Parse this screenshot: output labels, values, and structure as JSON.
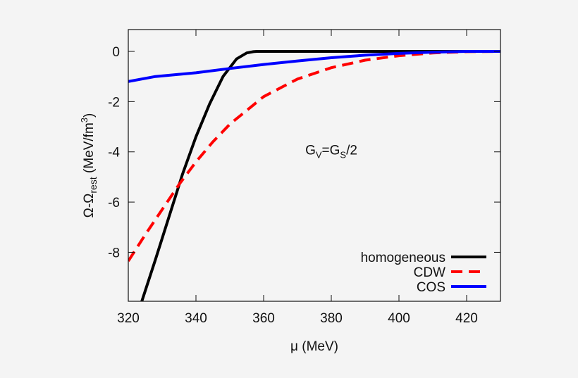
{
  "chart_data": {
    "type": "line",
    "title": "",
    "xlabel": "μ (MeV)",
    "ylabel_parts": {
      "main": "Ω-Ω",
      "sub": "rest",
      "unit": " (MeV/fm",
      "sup": "3",
      "close": ")"
    },
    "xlim": [
      320,
      430
    ],
    "ylim": [
      -9.95,
      0.87
    ],
    "xticks": [
      320,
      340,
      360,
      380,
      400,
      420
    ],
    "yticks": [
      0,
      -2,
      -4,
      -6,
      -8
    ],
    "grid": false,
    "legend_position": "bottom-right",
    "annotation": {
      "parts": [
        "G",
        "V",
        "=G",
        "S",
        "/2"
      ],
      "x": 380,
      "y": -4.1
    },
    "series": [
      {
        "name": "homogeneous",
        "color": "#000000",
        "dash": "solid",
        "x": [
          324,
          328,
          332,
          336,
          340,
          344,
          348,
          352,
          355,
          357,
          358,
          430
        ],
        "y": [
          -9.95,
          -8.3,
          -6.6,
          -4.9,
          -3.4,
          -2.1,
          -1.0,
          -0.3,
          -0.06,
          -0.01,
          0,
          0
        ]
      },
      {
        "name": "CDW",
        "color": "#ff0000",
        "dash": "dashed",
        "x": [
          320,
          325,
          330,
          335,
          340,
          345,
          350,
          360,
          370,
          380,
          390,
          400,
          410,
          420,
          430
        ],
        "y": [
          -8.35,
          -7.3,
          -6.3,
          -5.3,
          -4.4,
          -3.6,
          -2.9,
          -1.8,
          -1.1,
          -0.65,
          -0.35,
          -0.17,
          -0.06,
          -0.01,
          0
        ]
      },
      {
        "name": "COS",
        "color": "#0000ff",
        "dash": "solid",
        "x": [
          320,
          328,
          340,
          350,
          360,
          370,
          380,
          390,
          400,
          410,
          420,
          430
        ],
        "y": [
          -1.2,
          -1.0,
          -0.85,
          -0.68,
          -0.52,
          -0.38,
          -0.25,
          -0.15,
          -0.08,
          -0.03,
          0,
          0
        ]
      }
    ]
  }
}
